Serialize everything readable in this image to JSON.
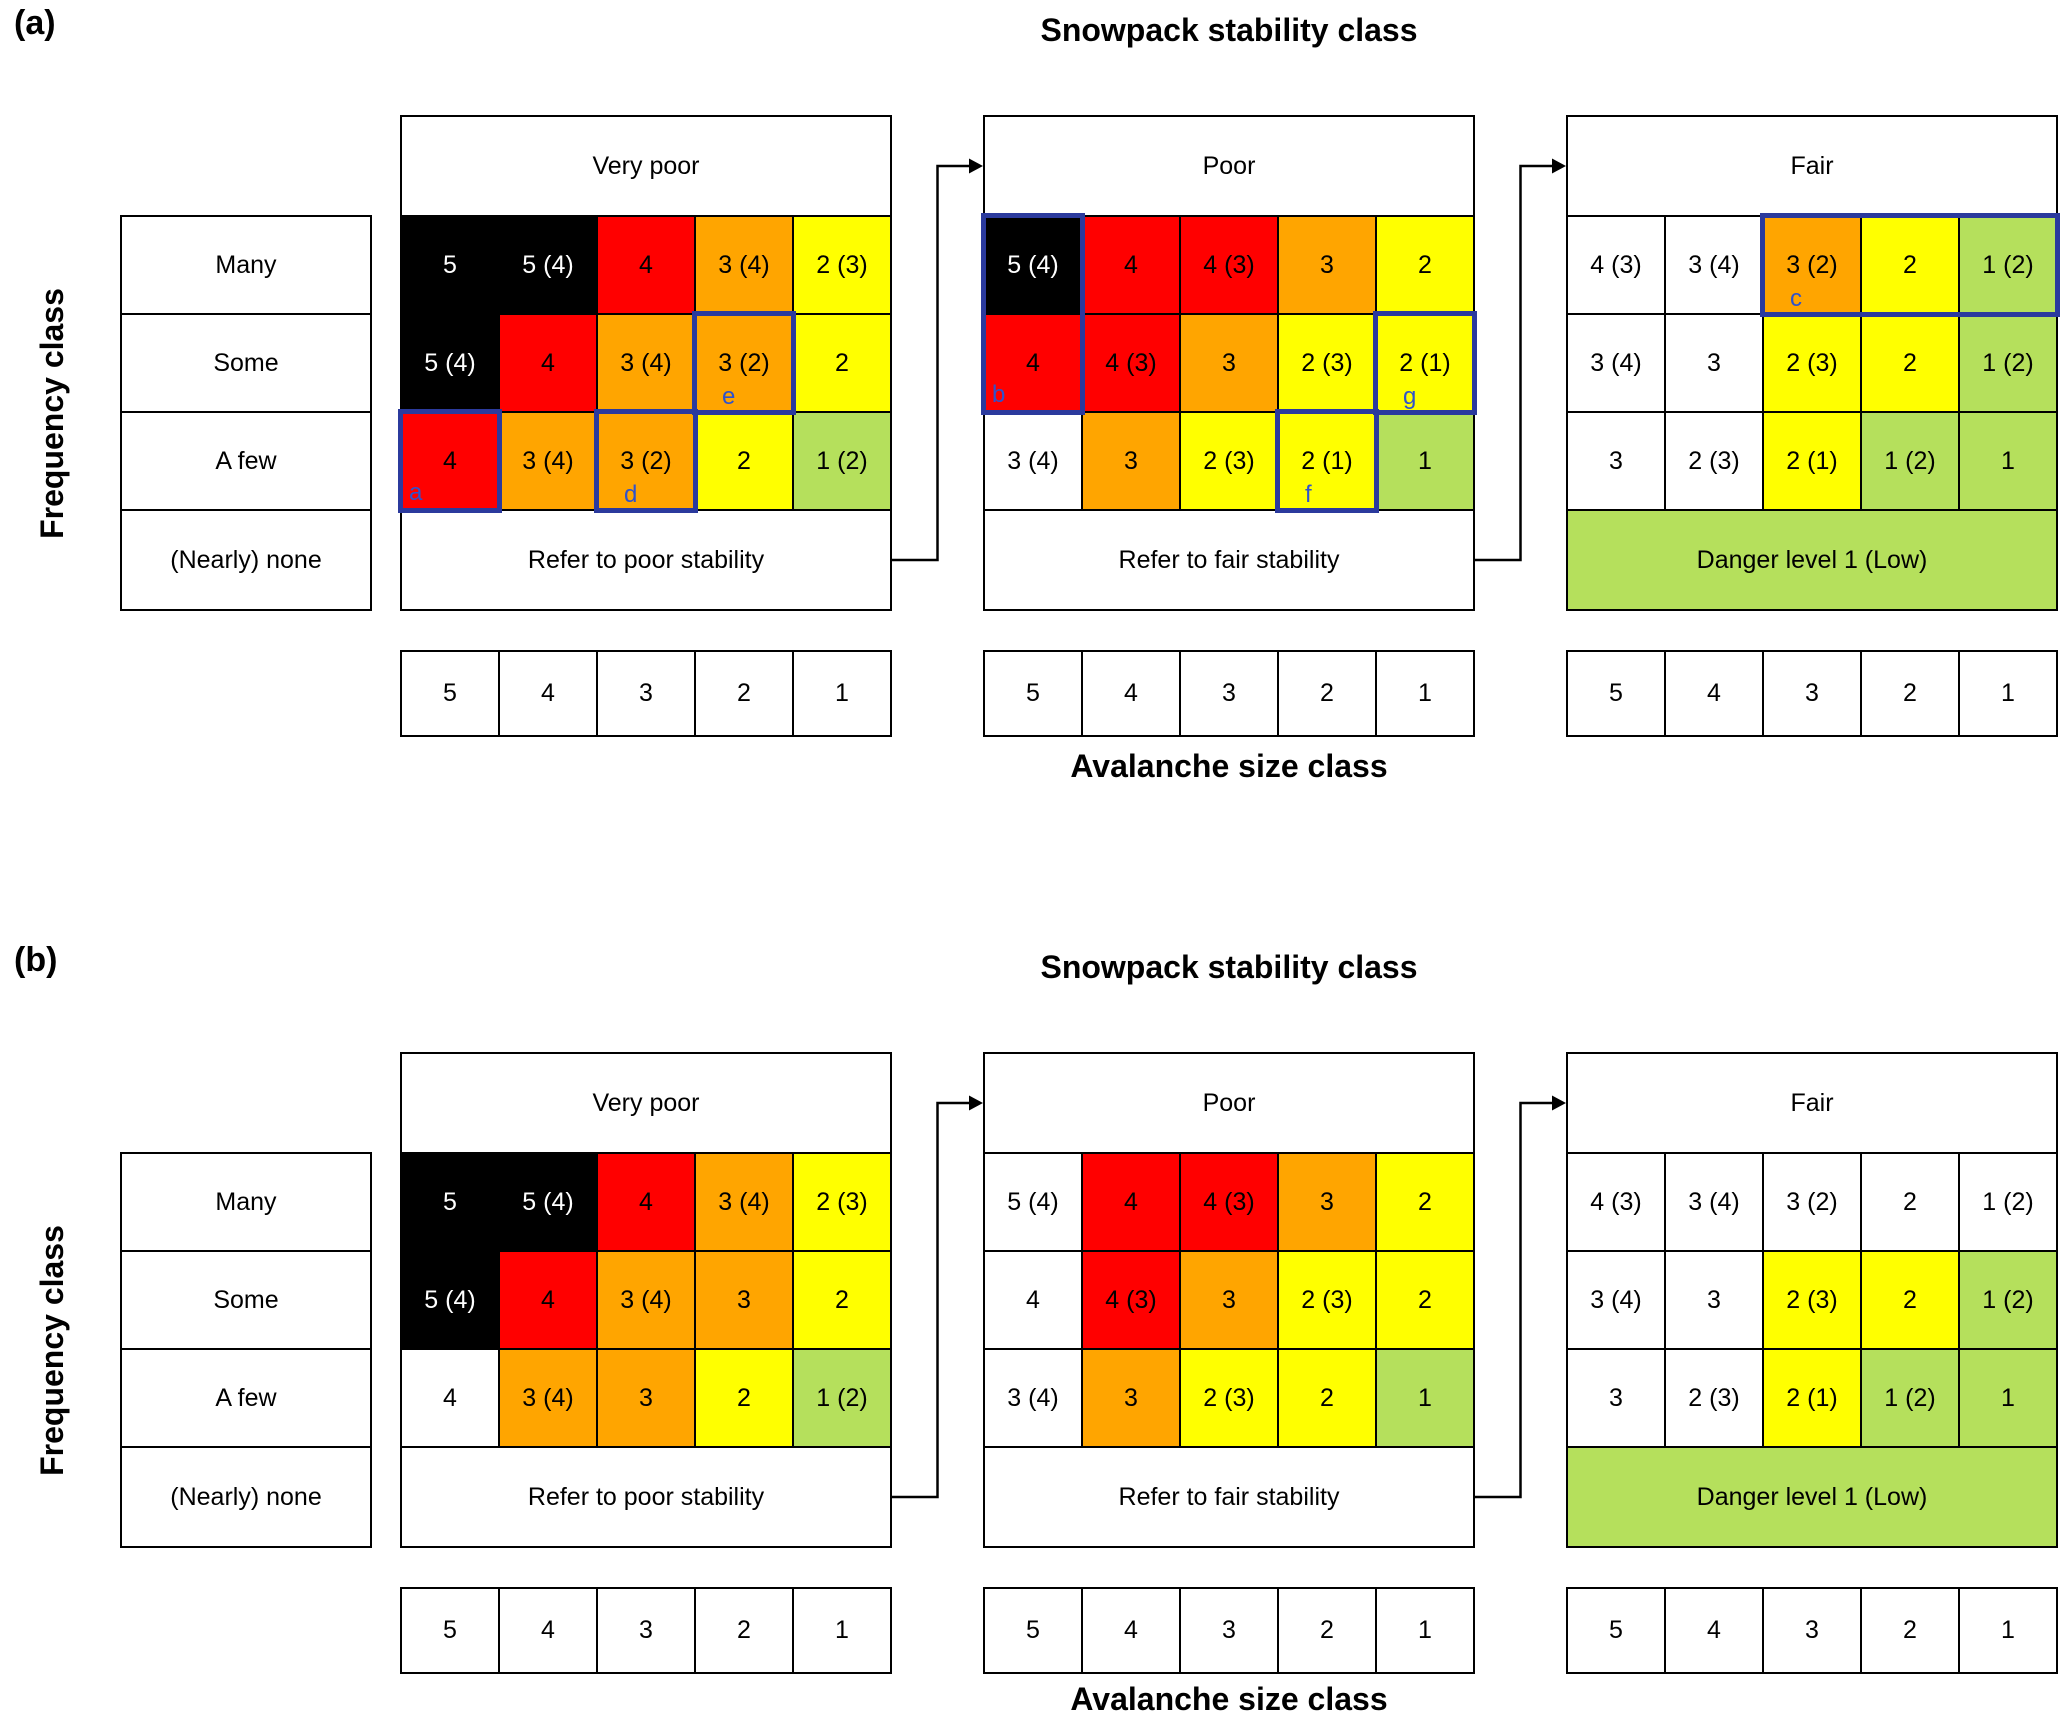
{
  "colors": {
    "black": "#000000",
    "red": "#ff0000",
    "orange": "#ffa500",
    "yellow": "#ffff00",
    "green": "#b5e05c",
    "white": "#ffffff",
    "text_black": "#000000",
    "text_white": "#ffffff",
    "highlight_border": "#2b3a9d",
    "annotation_text": "#2f52cc",
    "grid_line": "#000000"
  },
  "panels": [
    {
      "label": "(a)",
      "title": "Snowpack stability class",
      "y_axis_label": "Frequency class",
      "x_axis_label": "Avalanche size class",
      "frequency_labels": [
        "Many",
        "Some",
        "A few",
        "(Nearly) none"
      ],
      "size_classes": [
        "5",
        "4",
        "3",
        "2",
        "1"
      ],
      "grids": [
        {
          "title": "Very poor",
          "footer": {
            "text": "Refer to poor stability",
            "color": "white"
          },
          "rows": [
            [
              {
                "t": "5",
                "c": "black",
                "tc": "text_white"
              },
              {
                "t": "5 (4)",
                "c": "black",
                "tc": "text_white"
              },
              {
                "t": "4",
                "c": "red"
              },
              {
                "t": "3 (4)",
                "c": "orange"
              },
              {
                "t": "2 (3)",
                "c": "yellow"
              }
            ],
            [
              {
                "t": "5 (4)",
                "c": "black",
                "tc": "text_white"
              },
              {
                "t": "4",
                "c": "red"
              },
              {
                "t": "3 (4)",
                "c": "orange"
              },
              {
                "t": "3 (2)",
                "c": "orange",
                "hl": [
                  "top",
                  "right",
                  "bottom",
                  "left"
                ],
                "ann": "e",
                "annPos": "mid"
              },
              {
                "t": "2",
                "c": "yellow"
              }
            ],
            [
              {
                "t": "4",
                "c": "red",
                "hl": [
                  "top",
                  "right",
                  "bottom",
                  "left"
                ],
                "ann": "a",
                "annPos": "corner"
              },
              {
                "t": "3 (4)",
                "c": "orange"
              },
              {
                "t": "3 (2)",
                "c": "orange",
                "hl": [
                  "top",
                  "right",
                  "bottom",
                  "left"
                ],
                "ann": "d",
                "annPos": "mid"
              },
              {
                "t": "2",
                "c": "yellow"
              },
              {
                "t": "1 (2)",
                "c": "green"
              }
            ]
          ]
        },
        {
          "title": "Poor",
          "footer": {
            "text": "Refer to fair stability",
            "color": "white"
          },
          "rows": [
            [
              {
                "t": "5 (4)",
                "c": "black",
                "tc": "text_white",
                "hl": [
                  "top",
                  "right",
                  "left"
                ]
              },
              {
                "t": "4",
                "c": "red"
              },
              {
                "t": "4 (3)",
                "c": "red"
              },
              {
                "t": "3",
                "c": "orange"
              },
              {
                "t": "2",
                "c": "yellow"
              }
            ],
            [
              {
                "t": "4",
                "c": "red",
                "hl": [
                  "right",
                  "bottom",
                  "left"
                ],
                "ann": "b",
                "annPos": "corner"
              },
              {
                "t": "4 (3)",
                "c": "red"
              },
              {
                "t": "3",
                "c": "orange"
              },
              {
                "t": "2 (3)",
                "c": "yellow"
              },
              {
                "t": "2 (1)",
                "c": "yellow",
                "hl": [
                  "top",
                  "right",
                  "bottom",
                  "left"
                ],
                "ann": "g",
                "annPos": "mid"
              }
            ],
            [
              {
                "t": "3 (4)",
                "c": "white"
              },
              {
                "t": "3",
                "c": "orange"
              },
              {
                "t": "2 (3)",
                "c": "yellow"
              },
              {
                "t": "2 (1)",
                "c": "yellow",
                "hl": [
                  "top",
                  "right",
                  "bottom",
                  "left"
                ],
                "ann": "f",
                "annPos": "mid"
              },
              {
                "t": "1",
                "c": "green"
              }
            ]
          ]
        },
        {
          "title": "Fair",
          "footer": {
            "text": "Danger level 1 (Low)",
            "color": "green"
          },
          "rows": [
            [
              {
                "t": "4 (3)",
                "c": "white"
              },
              {
                "t": "3 (4)",
                "c": "white"
              },
              {
                "t": "3 (2)",
                "c": "orange",
                "hl": [
                  "top",
                  "bottom",
                  "left"
                ],
                "ann": "c",
                "annPos": "mid"
              },
              {
                "t": "2",
                "c": "yellow",
                "hl": [
                  "top",
                  "bottom"
                ]
              },
              {
                "t": "1 (2)",
                "c": "green",
                "hl": [
                  "top",
                  "right",
                  "bottom"
                ]
              }
            ],
            [
              {
                "t": "3 (4)",
                "c": "white"
              },
              {
                "t": "3",
                "c": "white"
              },
              {
                "t": "2 (3)",
                "c": "yellow"
              },
              {
                "t": "2",
                "c": "yellow"
              },
              {
                "t": "1 (2)",
                "c": "green"
              }
            ],
            [
              {
                "t": "3",
                "c": "white"
              },
              {
                "t": "2 (3)",
                "c": "white"
              },
              {
                "t": "2 (1)",
                "c": "yellow"
              },
              {
                "t": "1 (2)",
                "c": "green"
              },
              {
                "t": "1",
                "c": "green"
              }
            ]
          ]
        }
      ]
    },
    {
      "label": "(b)",
      "title": "Snowpack stability class",
      "y_axis_label": "Frequency class",
      "x_axis_label": "Avalanche size class",
      "frequency_labels": [
        "Many",
        "Some",
        "A few",
        "(Nearly) none"
      ],
      "size_classes": [
        "5",
        "4",
        "3",
        "2",
        "1"
      ],
      "grids": [
        {
          "title": "Very poor",
          "footer": {
            "text": "Refer to poor stability",
            "color": "white"
          },
          "rows": [
            [
              {
                "t": "5",
                "c": "black",
                "tc": "text_white"
              },
              {
                "t": "5 (4)",
                "c": "black",
                "tc": "text_white"
              },
              {
                "t": "4",
                "c": "red"
              },
              {
                "t": "3 (4)",
                "c": "orange"
              },
              {
                "t": "2 (3)",
                "c": "yellow"
              }
            ],
            [
              {
                "t": "5 (4)",
                "c": "black",
                "tc": "text_white"
              },
              {
                "t": "4",
                "c": "red"
              },
              {
                "t": "3 (4)",
                "c": "orange"
              },
              {
                "t": "3",
                "c": "orange"
              },
              {
                "t": "2",
                "c": "yellow"
              }
            ],
            [
              {
                "t": "4",
                "c": "white"
              },
              {
                "t": "3 (4)",
                "c": "orange"
              },
              {
                "t": "3",
                "c": "orange"
              },
              {
                "t": "2",
                "c": "yellow"
              },
              {
                "t": "1 (2)",
                "c": "green"
              }
            ]
          ]
        },
        {
          "title": "Poor",
          "footer": {
            "text": "Refer to fair stability",
            "color": "white"
          },
          "rows": [
            [
              {
                "t": "5 (4)",
                "c": "white"
              },
              {
                "t": "4",
                "c": "red"
              },
              {
                "t": "4 (3)",
                "c": "red"
              },
              {
                "t": "3",
                "c": "orange"
              },
              {
                "t": "2",
                "c": "yellow"
              }
            ],
            [
              {
                "t": "4",
                "c": "white"
              },
              {
                "t": "4 (3)",
                "c": "red"
              },
              {
                "t": "3",
                "c": "orange"
              },
              {
                "t": "2 (3)",
                "c": "yellow"
              },
              {
                "t": "2",
                "c": "yellow"
              }
            ],
            [
              {
                "t": "3 (4)",
                "c": "white"
              },
              {
                "t": "3",
                "c": "orange"
              },
              {
                "t": "2 (3)",
                "c": "yellow"
              },
              {
                "t": "2",
                "c": "yellow"
              },
              {
                "t": "1",
                "c": "green"
              }
            ]
          ]
        },
        {
          "title": "Fair",
          "footer": {
            "text": "Danger level 1 (Low)",
            "color": "green"
          },
          "rows": [
            [
              {
                "t": "4 (3)",
                "c": "white"
              },
              {
                "t": "3 (4)",
                "c": "white"
              },
              {
                "t": "3 (2)",
                "c": "white"
              },
              {
                "t": "2",
                "c": "white"
              },
              {
                "t": "1 (2)",
                "c": "white"
              }
            ],
            [
              {
                "t": "3 (4)",
                "c": "white"
              },
              {
                "t": "3",
                "c": "white"
              },
              {
                "t": "2 (3)",
                "c": "yellow"
              },
              {
                "t": "2",
                "c": "yellow"
              },
              {
                "t": "1 (2)",
                "c": "green"
              }
            ],
            [
              {
                "t": "3",
                "c": "white"
              },
              {
                "t": "2 (3)",
                "c": "white"
              },
              {
                "t": "2 (1)",
                "c": "yellow"
              },
              {
                "t": "1 (2)",
                "c": "green"
              },
              {
                "t": "1",
                "c": "green"
              }
            ]
          ]
        }
      ]
    }
  ]
}
